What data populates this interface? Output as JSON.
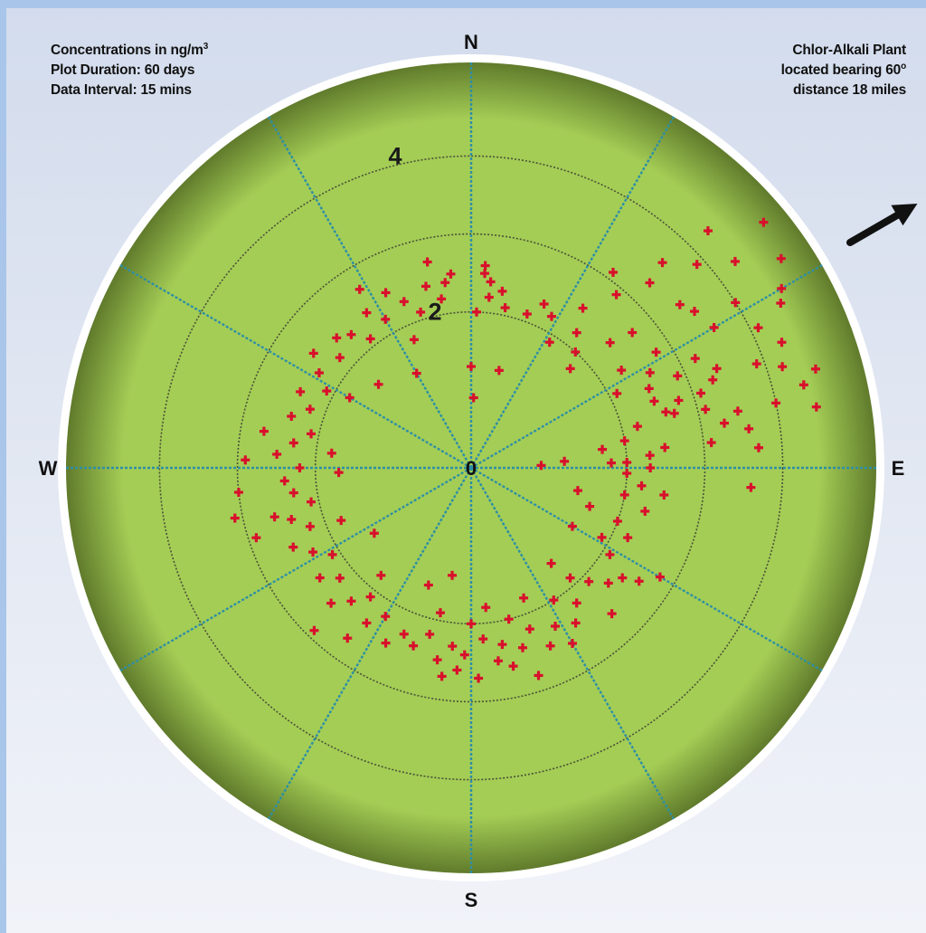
{
  "notes": {
    "left": {
      "line1": "Concentrations in ng/m",
      "line1_sup": "3",
      "line2": "Plot Duration: 60 days",
      "line3": "Data Interval: 15 mins"
    },
    "right": {
      "line1": "Chlor-Alkali Plant",
      "line2": "located bearing 60",
      "line2_sup": "o",
      "line3": "distance 18 miles"
    }
  },
  "compass": {
    "north": "N",
    "south": "S",
    "east": "E",
    "west": "W"
  },
  "colors": {
    "plot_fill": "#a4cd55",
    "plot_edge": "#607b2c",
    "point": "#d8102c",
    "spoke": "#2d8fa6",
    "ring": "#4a5238",
    "arrow": "#111111"
  },
  "chart_data": {
    "type": "scatter",
    "coordinate_system": "polar",
    "angle_unit": "degrees",
    "angle_convention": "compass bearing (0 = North, clockwise)",
    "radial_ticks": [
      {
        "value": 0,
        "label": "0"
      },
      {
        "value": 2,
        "label": "2"
      },
      {
        "value": 4,
        "label": "4"
      }
    ],
    "ring_values": [
      2,
      3,
      4
    ],
    "r_max": 5.2,
    "spoke_angles": [
      0,
      30,
      60,
      90,
      120,
      150,
      180,
      210,
      240,
      270,
      300,
      330
    ],
    "source_marker": {
      "bearing": 60,
      "label": "Chlor-Alkali Plant"
    },
    "series": [
      {
        "points": [
          {
            "bearing": 4,
            "r": 2.6
          },
          {
            "bearing": 4,
            "r": 2.5
          },
          {
            "bearing": 6,
            "r": 2.4
          },
          {
            "bearing": 10,
            "r": 2.3
          },
          {
            "bearing": 12,
            "r": 2.1
          },
          {
            "bearing": 6,
            "r": 2.2
          },
          {
            "bearing": 2,
            "r": 2.0
          },
          {
            "bearing": 354,
            "r": 2.5
          },
          {
            "bearing": 352,
            "r": 2.4
          },
          {
            "bearing": 0,
            "r": 1.3
          },
          {
            "bearing": 2,
            "r": 0.9
          },
          {
            "bearing": 20,
            "r": 2.1
          },
          {
            "bearing": 24,
            "r": 2.3
          },
          {
            "bearing": 28,
            "r": 2.2
          },
          {
            "bearing": 32,
            "r": 1.9
          },
          {
            "bearing": 16,
            "r": 1.3
          },
          {
            "bearing": 35,
            "r": 2.5
          },
          {
            "bearing": 38,
            "r": 2.2
          },
          {
            "bearing": 42,
            "r": 2.0
          },
          {
            "bearing": 45,
            "r": 1.8
          },
          {
            "bearing": 48,
            "r": 2.4
          },
          {
            "bearing": 40,
            "r": 2.9
          },
          {
            "bearing": 44,
            "r": 3.3
          },
          {
            "bearing": 36,
            "r": 3.1
          },
          {
            "bearing": 50,
            "r": 2.7
          },
          {
            "bearing": 52,
            "r": 3.4
          },
          {
            "bearing": 48,
            "r": 3.9
          },
          {
            "bearing": 55,
            "r": 3.5
          },
          {
            "bearing": 52,
            "r": 4.3
          },
          {
            "bearing": 58,
            "r": 4.0
          },
          {
            "bearing": 60,
            "r": 3.6
          },
          {
            "bearing": 62,
            "r": 4.5
          },
          {
            "bearing": 60,
            "r": 4.6
          },
          {
            "bearing": 64,
            "r": 4.1
          },
          {
            "bearing": 56,
            "r": 4.8
          },
          {
            "bearing": 50,
            "r": 4.9
          },
          {
            "bearing": 45,
            "r": 4.3
          },
          {
            "bearing": 43,
            "r": 3.6
          },
          {
            "bearing": 58,
            "r": 2.8
          },
          {
            "bearing": 62,
            "r": 2.6
          },
          {
            "bearing": 57,
            "r": 2.3
          },
          {
            "bearing": 66,
            "r": 2.9
          },
          {
            "bearing": 68,
            "r": 3.4
          },
          {
            "bearing": 66,
            "r": 2.5
          },
          {
            "bearing": 63,
            "r": 2.1
          },
          {
            "bearing": 70,
            "r": 3.3
          },
          {
            "bearing": 72,
            "r": 2.8
          },
          {
            "bearing": 74,
            "r": 2.6
          },
          {
            "bearing": 76,
            "r": 3.1
          },
          {
            "bearing": 78,
            "r": 3.5
          },
          {
            "bearing": 80,
            "r": 3.3
          },
          {
            "bearing": 82,
            "r": 3.6
          },
          {
            "bearing": 84,
            "r": 3.1
          },
          {
            "bearing": 70,
            "r": 3.9
          },
          {
            "bearing": 68,
            "r": 4.3
          },
          {
            "bearing": 72,
            "r": 4.2
          },
          {
            "bearing": 74,
            "r": 4.6
          },
          {
            "bearing": 76,
            "r": 4.4
          },
          {
            "bearing": 78,
            "r": 4.0
          },
          {
            "bearing": 80,
            "r": 4.5
          },
          {
            "bearing": 64,
            "r": 3.2
          },
          {
            "bearing": 72,
            "r": 3.1
          },
          {
            "bearing": 75,
            "r": 2.7
          },
          {
            "bearing": 70,
            "r": 2.5
          },
          {
            "bearing": 76,
            "r": 2.2
          },
          {
            "bearing": 80,
            "r": 2.0
          },
          {
            "bearing": 86,
            "r": 2.3
          },
          {
            "bearing": 88,
            "r": 2.0
          },
          {
            "bearing": 84,
            "r": 2.5
          },
          {
            "bearing": 82,
            "r": 1.7
          },
          {
            "bearing": 90,
            "r": 2.3
          },
          {
            "bearing": 92,
            "r": 2.0
          },
          {
            "bearing": 88,
            "r": 1.8
          },
          {
            "bearing": 86,
            "r": 1.2
          },
          {
            "bearing": 88,
            "r": 0.9
          },
          {
            "bearing": 86,
            "r": 3.7
          },
          {
            "bearing": 96,
            "r": 2.2
          },
          {
            "bearing": 100,
            "r": 2.0
          },
          {
            "bearing": 104,
            "r": 2.3
          },
          {
            "bearing": 110,
            "r": 2.0
          },
          {
            "bearing": 114,
            "r": 2.2
          },
          {
            "bearing": 108,
            "r": 1.6
          },
          {
            "bearing": 118,
            "r": 1.9
          },
          {
            "bearing": 122,
            "r": 2.1
          },
          {
            "bearing": 126,
            "r": 2.4
          },
          {
            "bearing": 120,
            "r": 2.8
          },
          {
            "bearing": 124,
            "r": 2.6
          },
          {
            "bearing": 98,
            "r": 2.5
          },
          {
            "bearing": 102,
            "r": 1.4
          },
          {
            "bearing": 94,
            "r": 3.6
          },
          {
            "bearing": 130,
            "r": 2.3
          },
          {
            "bearing": 134,
            "r": 2.1
          },
          {
            "bearing": 138,
            "r": 1.9
          },
          {
            "bearing": 142,
            "r": 2.2
          },
          {
            "bearing": 146,
            "r": 2.4
          },
          {
            "bearing": 136,
            "r": 2.6
          },
          {
            "bearing": 148,
            "r": 2.0
          },
          {
            "bearing": 140,
            "r": 1.6
          },
          {
            "bearing": 152,
            "r": 2.3
          },
          {
            "bearing": 156,
            "r": 2.5
          },
          {
            "bearing": 160,
            "r": 2.2
          },
          {
            "bearing": 164,
            "r": 2.4
          },
          {
            "bearing": 166,
            "r": 2.0
          },
          {
            "bearing": 158,
            "r": 1.8
          },
          {
            "bearing": 150,
            "r": 2.6
          },
          {
            "bearing": 162,
            "r": 2.8
          },
          {
            "bearing": 168,
            "r": 2.6
          },
          {
            "bearing": 170,
            "r": 2.3
          },
          {
            "bearing": 172,
            "r": 2.5
          },
          {
            "bearing": 176,
            "r": 2.2
          },
          {
            "bearing": 178,
            "r": 2.7
          },
          {
            "bearing": 182,
            "r": 2.4
          },
          {
            "bearing": 180,
            "r": 2.0
          },
          {
            "bearing": 174,
            "r": 1.8
          },
          {
            "bearing": 184,
            "r": 2.6
          },
          {
            "bearing": 186,
            "r": 2.3
          },
          {
            "bearing": 190,
            "r": 2.5
          },
          {
            "bearing": 194,
            "r": 2.2
          },
          {
            "bearing": 198,
            "r": 2.4
          },
          {
            "bearing": 192,
            "r": 1.9
          },
          {
            "bearing": 188,
            "r": 2.7
          },
          {
            "bearing": 202,
            "r": 2.3
          },
          {
            "bearing": 206,
            "r": 2.5
          },
          {
            "bearing": 210,
            "r": 2.2
          },
          {
            "bearing": 214,
            "r": 2.4
          },
          {
            "bearing": 218,
            "r": 2.1
          },
          {
            "bearing": 222,
            "r": 2.3
          },
          {
            "bearing": 226,
            "r": 2.5
          },
          {
            "bearing": 230,
            "r": 2.2
          },
          {
            "bearing": 216,
            "r": 2.7
          },
          {
            "bearing": 220,
            "r": 1.8
          },
          {
            "bearing": 224,
            "r": 2.9
          },
          {
            "bearing": 234,
            "r": 2.4
          },
          {
            "bearing": 238,
            "r": 2.1
          },
          {
            "bearing": 242,
            "r": 2.3
          },
          {
            "bearing": 246,
            "r": 2.5
          },
          {
            "bearing": 250,
            "r": 2.2
          },
          {
            "bearing": 254,
            "r": 2.4
          },
          {
            "bearing": 258,
            "r": 2.1
          },
          {
            "bearing": 262,
            "r": 2.3
          },
          {
            "bearing": 248,
            "r": 1.8
          },
          {
            "bearing": 256,
            "r": 2.6
          },
          {
            "bearing": 252,
            "r": 2.9
          },
          {
            "bearing": 266,
            "r": 2.4
          },
          {
            "bearing": 270,
            "r": 2.2
          },
          {
            "bearing": 274,
            "r": 2.5
          },
          {
            "bearing": 278,
            "r": 2.3
          },
          {
            "bearing": 282,
            "r": 2.1
          },
          {
            "bearing": 286,
            "r": 2.4
          },
          {
            "bearing": 276,
            "r": 1.8
          },
          {
            "bearing": 272,
            "r": 2.9
          },
          {
            "bearing": 264,
            "r": 3.0
          },
          {
            "bearing": 258,
            "r": 3.1
          },
          {
            "bearing": 268,
            "r": 1.7
          },
          {
            "bearing": 280,
            "r": 2.7
          },
          {
            "bearing": 290,
            "r": 2.2
          },
          {
            "bearing": 294,
            "r": 2.4
          },
          {
            "bearing": 298,
            "r": 2.1
          },
          {
            "bearing": 302,
            "r": 2.3
          },
          {
            "bearing": 306,
            "r": 2.5
          },
          {
            "bearing": 310,
            "r": 2.2
          },
          {
            "bearing": 314,
            "r": 2.4
          },
          {
            "bearing": 300,
            "r": 1.8
          },
          {
            "bearing": 318,
            "r": 2.3
          },
          {
            "bearing": 322,
            "r": 2.1
          },
          {
            "bearing": 326,
            "r": 2.4
          },
          {
            "bearing": 330,
            "r": 2.2
          },
          {
            "bearing": 334,
            "r": 2.5
          },
          {
            "bearing": 338,
            "r": 2.3
          },
          {
            "bearing": 342,
            "r": 2.1
          },
          {
            "bearing": 346,
            "r": 2.4
          },
          {
            "bearing": 350,
            "r": 2.2
          },
          {
            "bearing": 336,
            "r": 1.8
          },
          {
            "bearing": 328,
            "r": 2.7
          },
          {
            "bearing": 348,
            "r": 2.7
          },
          {
            "bearing": 200,
            "r": 1.6
          },
          {
            "bearing": 236,
            "r": 1.5
          },
          {
            "bearing": 312,
            "r": 1.6
          },
          {
            "bearing": 190,
            "r": 1.4
          },
          {
            "bearing": 120,
            "r": 1.5
          },
          {
            "bearing": 330,
            "r": 1.4
          }
        ]
      }
    ]
  }
}
